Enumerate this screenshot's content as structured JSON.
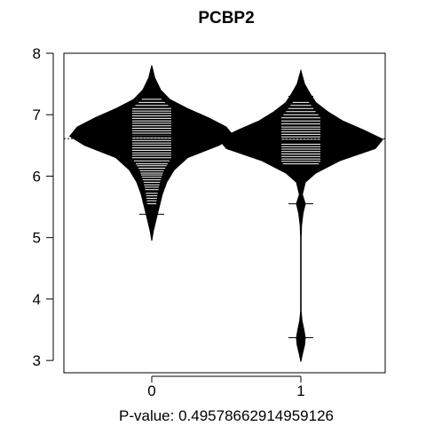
{
  "chart_data": {
    "type": "beanplot",
    "title": "PCBP2",
    "xlabel": "P-value: 0.49578662914959126",
    "ylabel": "",
    "categories": [
      "0",
      "1"
    ],
    "ylim": [
      2.8,
      8.0
    ],
    "yticks": [
      "3",
      "4",
      "5",
      "6",
      "7",
      "8"
    ],
    "overall_mean": 6.61,
    "groups": [
      {
        "name": "0",
        "mean": 6.65,
        "quantile_lines": [
          7.3,
          6.68,
          5.38
        ],
        "density": [
          [
            4.95,
            0.0
          ],
          [
            5.1,
            0.01
          ],
          [
            5.3,
            0.03
          ],
          [
            5.5,
            0.05
          ],
          [
            5.7,
            0.07
          ],
          [
            5.9,
            0.1
          ],
          [
            6.1,
            0.15
          ],
          [
            6.3,
            0.24
          ],
          [
            6.5,
            0.45
          ],
          [
            6.65,
            0.55
          ],
          [
            6.8,
            0.5
          ],
          [
            6.95,
            0.38
          ],
          [
            7.1,
            0.24
          ],
          [
            7.25,
            0.12
          ],
          [
            7.4,
            0.06
          ],
          [
            7.6,
            0.02
          ],
          [
            7.8,
            0.0
          ]
        ],
        "white_lines": [
          5.55,
          5.6,
          5.64,
          5.68,
          5.72,
          5.78,
          5.82,
          5.86,
          5.9,
          5.94,
          5.98,
          6.02,
          6.05,
          6.09,
          6.13,
          6.17,
          6.2,
          6.25,
          6.3,
          6.34,
          6.38,
          6.42,
          6.46,
          6.5,
          6.54,
          6.58,
          6.62,
          6.66,
          6.7,
          6.74,
          6.78,
          6.82,
          6.86,
          6.9,
          6.94,
          6.98,
          7.02,
          7.06,
          7.1,
          7.15,
          7.2,
          7.25
        ]
      },
      {
        "name": "1",
        "mean": 6.56,
        "quantile_lines": [
          7.3,
          6.55,
          5.55,
          3.37
        ],
        "density": [
          [
            2.98,
            0.0
          ],
          [
            3.1,
            0.01
          ],
          [
            3.25,
            0.025
          ],
          [
            3.37,
            0.03
          ],
          [
            3.5,
            0.02
          ],
          [
            3.65,
            0.008
          ],
          [
            3.8,
            0.002
          ],
          [
            4.0,
            0.002
          ],
          [
            4.5,
            0.002
          ],
          [
            5.0,
            0.002
          ],
          [
            5.2,
            0.005
          ],
          [
            5.4,
            0.015
          ],
          [
            5.55,
            0.03
          ],
          [
            5.7,
            0.01
          ],
          [
            5.9,
            0.03
          ],
          [
            6.05,
            0.1
          ],
          [
            6.25,
            0.26
          ],
          [
            6.45,
            0.5
          ],
          [
            6.6,
            0.55
          ],
          [
            6.75,
            0.42
          ],
          [
            6.9,
            0.28
          ],
          [
            7.05,
            0.18
          ],
          [
            7.2,
            0.1
          ],
          [
            7.35,
            0.06
          ],
          [
            7.5,
            0.025
          ],
          [
            7.72,
            0.0
          ]
        ],
        "white_lines": [
          6.2,
          6.24,
          6.28,
          6.32,
          6.36,
          6.4,
          6.44,
          6.48,
          6.52,
          6.56,
          6.6,
          6.64,
          6.68,
          6.72,
          6.76,
          6.8,
          6.85,
          6.9,
          6.95,
          7.0,
          7.05,
          7.1,
          7.15,
          7.2
        ]
      }
    ]
  }
}
